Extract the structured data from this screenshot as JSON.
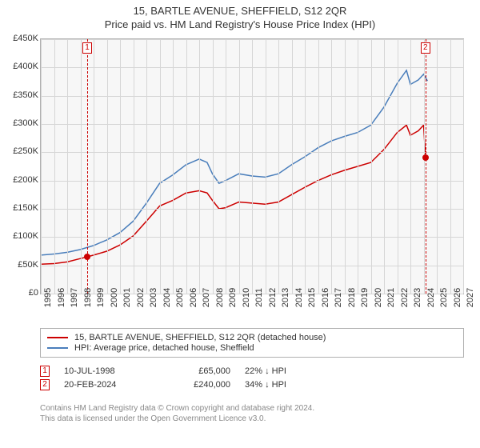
{
  "title": {
    "address": "15, BARTLE AVENUE, SHEFFIELD, S12 2QR",
    "subtitle": "Price paid vs. HM Land Registry's House Price Index (HPI)"
  },
  "chart": {
    "type": "line",
    "background_color": "#f7f7f7",
    "grid_color": "#d6d6d6",
    "border_color": "#b0b0b0",
    "ylim": [
      0,
      450000
    ],
    "ytick_step": 50000,
    "ytick_labels": [
      "£0",
      "£50K",
      "£100K",
      "£150K",
      "£200K",
      "£250K",
      "£300K",
      "£350K",
      "£400K",
      "£450K"
    ],
    "xlim": [
      1995,
      2027
    ],
    "xtick_step": 1,
    "xtick_labels": [
      "1995",
      "1996",
      "1997",
      "1998",
      "1999",
      "2000",
      "2001",
      "2002",
      "2003",
      "2004",
      "2005",
      "2006",
      "2007",
      "2008",
      "2009",
      "2010",
      "2011",
      "2012",
      "2013",
      "2014",
      "2015",
      "2016",
      "2017",
      "2018",
      "2019",
      "2020",
      "2021",
      "2022",
      "2023",
      "2024",
      "2025",
      "2026",
      "2027"
    ],
    "series": [
      {
        "name": "property_line",
        "color": "#cc0000",
        "width": 1.5,
        "legend": "15, BARTLE AVENUE, SHEFFIELD, S12 2QR (detached house)",
        "data": [
          [
            1995,
            52000
          ],
          [
            1996,
            53000
          ],
          [
            1997,
            56000
          ],
          [
            1998,
            62000
          ],
          [
            1998.5,
            65000
          ],
          [
            1999,
            68000
          ],
          [
            2000,
            75000
          ],
          [
            2001,
            86000
          ],
          [
            2002,
            102000
          ],
          [
            2003,
            128000
          ],
          [
            2004,
            155000
          ],
          [
            2005,
            165000
          ],
          [
            2006,
            178000
          ],
          [
            2007,
            182000
          ],
          [
            2007.6,
            178000
          ],
          [
            2008,
            165000
          ],
          [
            2008.5,
            150000
          ],
          [
            2009,
            152000
          ],
          [
            2010,
            162000
          ],
          [
            2011,
            160000
          ],
          [
            2012,
            158000
          ],
          [
            2013,
            162000
          ],
          [
            2014,
            175000
          ],
          [
            2015,
            188000
          ],
          [
            2016,
            200000
          ],
          [
            2017,
            210000
          ],
          [
            2018,
            218000
          ],
          [
            2019,
            225000
          ],
          [
            2020,
            232000
          ],
          [
            2021,
            255000
          ],
          [
            2022,
            285000
          ],
          [
            2022.7,
            298000
          ],
          [
            2023,
            280000
          ],
          [
            2023.6,
            288000
          ],
          [
            2024,
            298000
          ],
          [
            2024.15,
            240000
          ]
        ]
      },
      {
        "name": "hpi_line",
        "color": "#4a7ebb",
        "width": 1.5,
        "legend": "HPI: Average price, detached house, Sheffield",
        "data": [
          [
            1995,
            68000
          ],
          [
            1996,
            70000
          ],
          [
            1997,
            73000
          ],
          [
            1998,
            78000
          ],
          [
            1999,
            85000
          ],
          [
            2000,
            95000
          ],
          [
            2001,
            108000
          ],
          [
            2002,
            128000
          ],
          [
            2003,
            160000
          ],
          [
            2004,
            195000
          ],
          [
            2005,
            210000
          ],
          [
            2006,
            228000
          ],
          [
            2007,
            238000
          ],
          [
            2007.6,
            232000
          ],
          [
            2008,
            212000
          ],
          [
            2008.5,
            195000
          ],
          [
            2009,
            200000
          ],
          [
            2010,
            212000
          ],
          [
            2011,
            208000
          ],
          [
            2012,
            206000
          ],
          [
            2013,
            212000
          ],
          [
            2014,
            228000
          ],
          [
            2015,
            242000
          ],
          [
            2016,
            258000
          ],
          [
            2017,
            270000
          ],
          [
            2018,
            278000
          ],
          [
            2019,
            285000
          ],
          [
            2020,
            298000
          ],
          [
            2021,
            330000
          ],
          [
            2022,
            372000
          ],
          [
            2022.7,
            395000
          ],
          [
            2023,
            370000
          ],
          [
            2023.6,
            378000
          ],
          [
            2024,
            388000
          ],
          [
            2024.3,
            376000
          ]
        ]
      }
    ],
    "sales": [
      {
        "n": "1",
        "year": 1998.52,
        "price": 65000,
        "date": "10-JUL-1998",
        "delta": "22% ↓ HPI",
        "color": "#cc0000"
      },
      {
        "n": "2",
        "year": 2024.14,
        "price": 240000,
        "date": "20-FEB-2024",
        "delta": "34% ↓ HPI",
        "color": "#cc0000"
      }
    ],
    "dot_fill": "#cc0000",
    "axis_label_fontsize": 11
  },
  "footer": {
    "line1": "Contains HM Land Registry data © Crown copyright and database right 2024.",
    "line2": "This data is licensed under the Open Government Licence v3.0."
  }
}
